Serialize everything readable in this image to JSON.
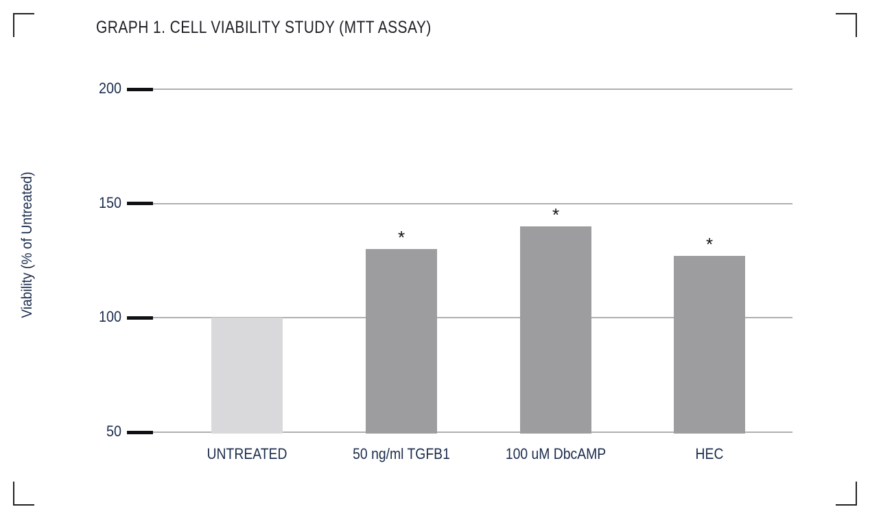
{
  "page": {
    "corner_marks": [
      "top-left",
      "top-right",
      "bottom-left",
      "bottom-right"
    ]
  },
  "chart_data": {
    "type": "bar",
    "title": "GRAPH 1. CELL VIABILITY STUDY (MTT ASSAY)",
    "ylabel": "Viability (% of Untreated)",
    "xlabel": "",
    "categories": [
      "UNTREATED",
      "50 ng/ml TGFB1",
      "100 uM DbcAMP",
      "HEC"
    ],
    "values": [
      100,
      130,
      140,
      127
    ],
    "significant": [
      false,
      true,
      true,
      true
    ],
    "significance_marker": "*",
    "ylim": [
      50,
      200
    ],
    "yticks": [
      50,
      100,
      150,
      200
    ],
    "grid": true,
    "legend": "none",
    "bar_colors": [
      "#d9d9db",
      "#9d9d9f",
      "#9d9d9f",
      "#9d9d9f"
    ]
  },
  "colors": {
    "axis_text": "#1a2b4c",
    "title_text": "#1d1f23",
    "gridline": "#afafb1",
    "tick": "#0f1013",
    "corner_mark": "#1f1f1f",
    "significance": "#111111",
    "background": "#ffffff"
  }
}
